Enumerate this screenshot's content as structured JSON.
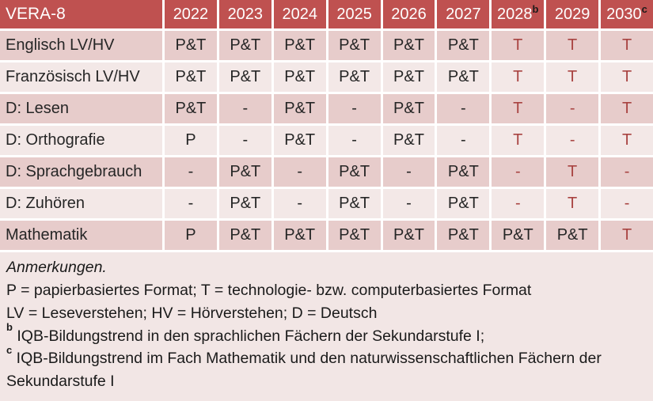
{
  "table": {
    "title": "VERA-8",
    "columns": [
      {
        "label": "2022",
        "sup": ""
      },
      {
        "label": "2023",
        "sup": ""
      },
      {
        "label": "2024",
        "sup": ""
      },
      {
        "label": "2025",
        "sup": ""
      },
      {
        "label": "2026",
        "sup": ""
      },
      {
        "label": "2027",
        "sup": ""
      },
      {
        "label": "2028",
        "sup": "b"
      },
      {
        "label": "2029",
        "sup": ""
      },
      {
        "label": "2030",
        "sup": "c"
      }
    ],
    "rows": [
      {
        "label": "Englisch LV/HV",
        "cells": [
          {
            "v": "P&T",
            "red": false
          },
          {
            "v": "P&T",
            "red": false
          },
          {
            "v": "P&T",
            "red": false
          },
          {
            "v": "P&T",
            "red": false
          },
          {
            "v": "P&T",
            "red": false
          },
          {
            "v": "P&T",
            "red": false
          },
          {
            "v": "T",
            "red": true
          },
          {
            "v": "T",
            "red": true
          },
          {
            "v": "T",
            "red": true
          }
        ]
      },
      {
        "label": "Französisch LV/HV",
        "cells": [
          {
            "v": "P&T",
            "red": false
          },
          {
            "v": "P&T",
            "red": false
          },
          {
            "v": "P&T",
            "red": false
          },
          {
            "v": "P&T",
            "red": false
          },
          {
            "v": "P&T",
            "red": false
          },
          {
            "v": "P&T",
            "red": false
          },
          {
            "v": "T",
            "red": true
          },
          {
            "v": "T",
            "red": true
          },
          {
            "v": "T",
            "red": true
          }
        ]
      },
      {
        "label": "D: Lesen",
        "cells": [
          {
            "v": "P&T",
            "red": false
          },
          {
            "v": "-",
            "red": false
          },
          {
            "v": "P&T",
            "red": false
          },
          {
            "v": "-",
            "red": false
          },
          {
            "v": "P&T",
            "red": false
          },
          {
            "v": "-",
            "red": false
          },
          {
            "v": "T",
            "red": true
          },
          {
            "v": "-",
            "red": true
          },
          {
            "v": "T",
            "red": true
          }
        ]
      },
      {
        "label": "D: Orthografie",
        "cells": [
          {
            "v": "P",
            "red": false
          },
          {
            "v": "-",
            "red": false
          },
          {
            "v": "P&T",
            "red": false
          },
          {
            "v": "-",
            "red": false
          },
          {
            "v": "P&T",
            "red": false
          },
          {
            "v": "-",
            "red": false
          },
          {
            "v": "T",
            "red": true
          },
          {
            "v": "-",
            "red": true
          },
          {
            "v": "T",
            "red": true
          }
        ]
      },
      {
        "label": "D: Sprachgebrauch",
        "cells": [
          {
            "v": "-",
            "red": false
          },
          {
            "v": "P&T",
            "red": false
          },
          {
            "v": "-",
            "red": false
          },
          {
            "v": "P&T",
            "red": false
          },
          {
            "v": "-",
            "red": false
          },
          {
            "v": "P&T",
            "red": false
          },
          {
            "v": "-",
            "red": true
          },
          {
            "v": "T",
            "red": true
          },
          {
            "v": "-",
            "red": true
          }
        ]
      },
      {
        "label": "D: Zuhören",
        "cells": [
          {
            "v": "-",
            "red": false
          },
          {
            "v": "P&T",
            "red": false
          },
          {
            "v": "-",
            "red": false
          },
          {
            "v": "P&T",
            "red": false
          },
          {
            "v": "-",
            "red": false
          },
          {
            "v": "P&T",
            "red": false
          },
          {
            "v": "-",
            "red": true
          },
          {
            "v": "T",
            "red": true
          },
          {
            "v": "-",
            "red": true
          }
        ]
      },
      {
        "label": "Mathematik",
        "cells": [
          {
            "v": "P",
            "red": false
          },
          {
            "v": "P&T",
            "red": false
          },
          {
            "v": "P&T",
            "red": false
          },
          {
            "v": "P&T",
            "red": false
          },
          {
            "v": "P&T",
            "red": false
          },
          {
            "v": "P&T",
            "red": false
          },
          {
            "v": "P&T",
            "red": false
          },
          {
            "v": "P&T",
            "red": false
          },
          {
            "v": "T",
            "red": true
          }
        ]
      }
    ]
  },
  "notes": {
    "heading": "Anmerkungen.",
    "formats_line": "P = papierbasiertes Format; T = technologie- bzw. computerbasiertes Format",
    "abbreviations_line": "LV = Leseverstehen; HV = Hörverstehen; D = Deutsch",
    "note_b_sup": "b",
    "note_b_text": "IQB-Bildungstrend in den sprachlichen Fächern der Sekundarstufe I;",
    "note_c_sup": "c",
    "note_c_text": "IQB-Bildungstrend im Fach Mathematik und den naturwissenschaftlichen Fächern der Sekundarstufe I"
  },
  "colors": {
    "header_bg": "#BF5150",
    "header_text": "#FFFFFF",
    "row_dark_bg": "#E7CCCB",
    "row_light_bg": "#F3E8E7",
    "notes_bg": "#F2E6E5",
    "accent_red": "#A84341",
    "text_dark": "#262626"
  }
}
